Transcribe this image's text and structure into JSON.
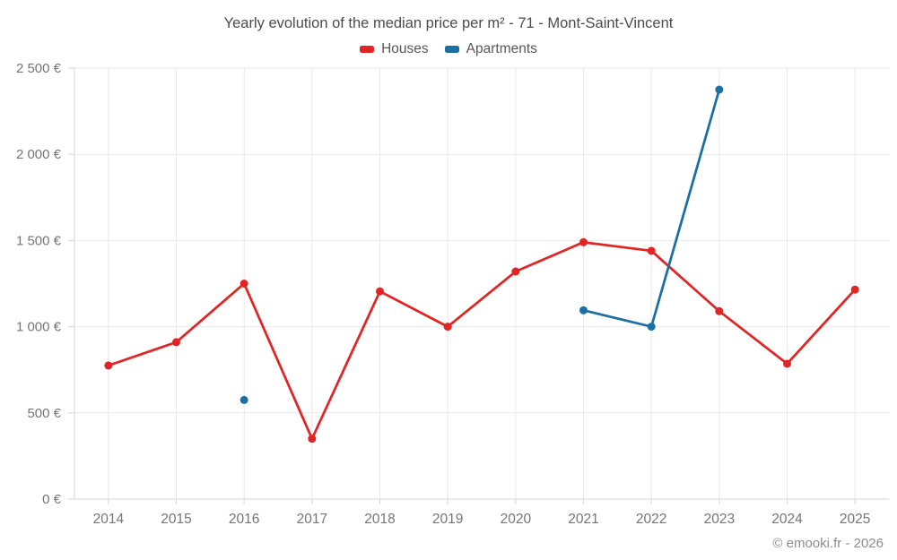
{
  "chart_data": {
    "type": "line",
    "title": "Yearly evolution of the median price per m² - 71 - Mont-Saint-Vincent",
    "categories": [
      "2014",
      "2015",
      "2016",
      "2017",
      "2018",
      "2019",
      "2020",
      "2021",
      "2022",
      "2023",
      "2024",
      "2025"
    ],
    "series": [
      {
        "name": "Houses",
        "color": "#e02524",
        "values": [
          775,
          910,
          1250,
          350,
          1205,
          1000,
          1320,
          1490,
          1440,
          1090,
          785,
          1215
        ]
      },
      {
        "name": "Apartments",
        "color": "#1a6fa5",
        "values": [
          null,
          null,
          575,
          null,
          null,
          null,
          null,
          1095,
          1000,
          2375,
          null,
          null
        ]
      }
    ],
    "xlabel": "",
    "ylabel": "",
    "ylim": [
      0,
      2500
    ],
    "ytick_step": 500,
    "ytick_labels": [
      "0 €",
      "500 €",
      "1 000 €",
      "1 500 €",
      "2 000 €",
      "2 500 €"
    ],
    "grid": true,
    "legend_position": "top"
  },
  "footer": {
    "credit": "© emooki.fr - 2026"
  },
  "colors": {
    "grid": "#e9e9e9",
    "axis": "#d6d6d6",
    "tick_text": "#757575",
    "title_text": "#4b4b4b",
    "legend_text": "#585858",
    "footer_text": "#8c8c8c"
  }
}
